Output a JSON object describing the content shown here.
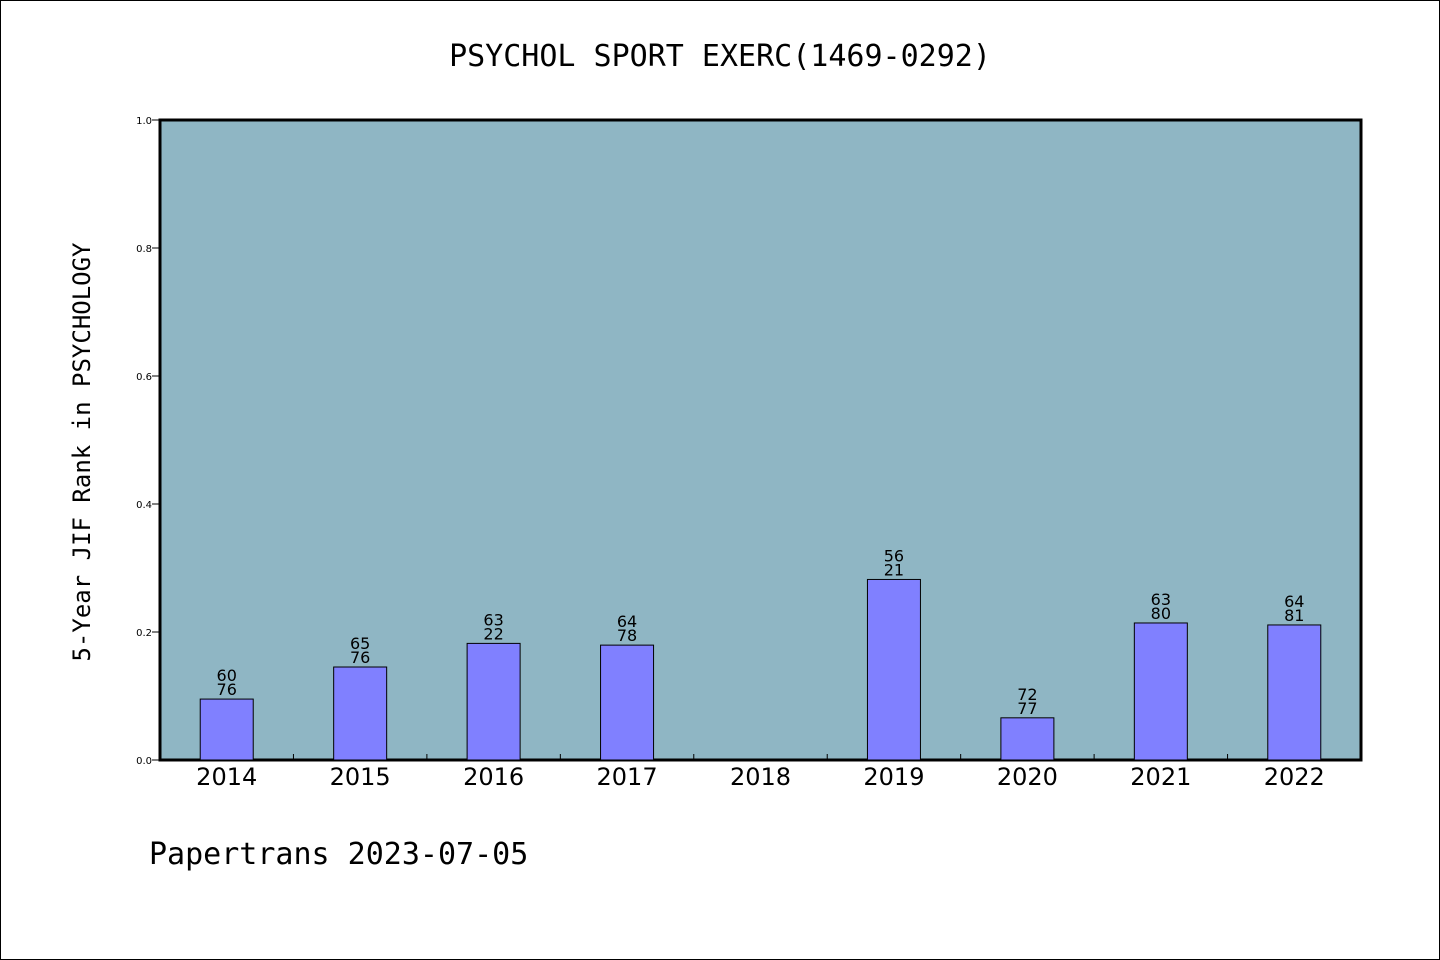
{
  "chart_data": {
    "type": "bar",
    "title": "PSYCHOL SPORT EXERC(1469-0292)",
    "ylabel": "5-Year JIF Rank in PSYCHOLOGY",
    "xlabel": "",
    "ylim": [
      0.0,
      1.0
    ],
    "yticks": [
      "0.0",
      "0.2",
      "0.4",
      "0.6",
      "0.8",
      "1.0"
    ],
    "categories": [
      "2014",
      "2015",
      "2016",
      "2017",
      "2018",
      "2019",
      "2020",
      "2021",
      "2022"
    ],
    "values": [
      0.0952,
      0.1453,
      0.1822,
      0.1795,
      null,
      0.2821,
      0.0659,
      0.2141,
      0.211
    ],
    "labels": [
      [
        "60",
        "76"
      ],
      [
        "65",
        "76"
      ],
      [
        "63",
        "22"
      ],
      [
        "64",
        "78"
      ],
      null,
      [
        "56",
        "21"
      ],
      [
        "72",
        "77"
      ],
      [
        "63",
        "80"
      ],
      [
        "64",
        "81"
      ]
    ],
    "grid": false,
    "colors": {
      "plot_bg": "#8fb6c4",
      "bar": "#8080ff",
      "bar_edge": "#000000"
    }
  },
  "footer": "Papertrans 2023-07-05"
}
